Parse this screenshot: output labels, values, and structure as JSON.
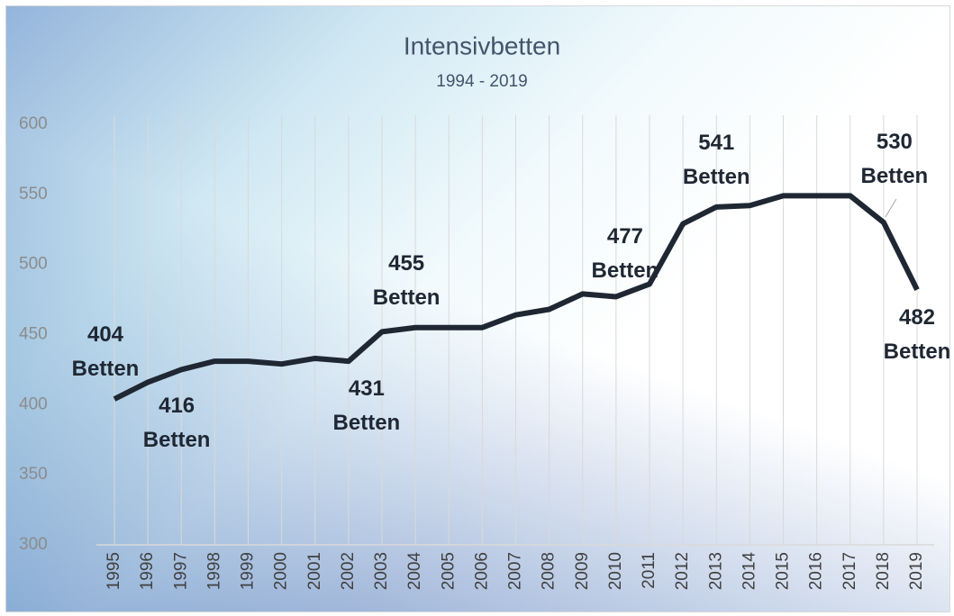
{
  "chart_data": {
    "type": "line",
    "title": "Intensivbetten",
    "subtitle": "1994 - 2019",
    "categories": [
      "1995",
      "1996",
      "1997",
      "1998",
      "1999",
      "2000",
      "2001",
      "2002",
      "2003",
      "2004",
      "2005",
      "2006",
      "2007",
      "2008",
      "2009",
      "2010",
      "2011",
      "2012",
      "2013",
      "2014",
      "2015",
      "2016",
      "2017",
      "2018",
      "2019"
    ],
    "series": [
      {
        "name": "Intensivbetten",
        "color": "#1f2733",
        "values": [
          404,
          416,
          425,
          431,
          431,
          429,
          433,
          431,
          452,
          455,
          455,
          455,
          464,
          468,
          479,
          477,
          486,
          529,
          541,
          542,
          549,
          549,
          549,
          530,
          482
        ],
        "value_labels": [
          "404 Betten",
          "416 Betten",
          null,
          null,
          null,
          null,
          null,
          "431 Betten",
          null,
          "455 Betten",
          null,
          null,
          null,
          null,
          null,
          "477 Betten",
          null,
          null,
          "541 Betten",
          null,
          null,
          null,
          null,
          "530 Betten",
          "482 Betten"
        ]
      }
    ],
    "ylim": [
      300,
      600
    ],
    "yticks": [
      300,
      350,
      400,
      450,
      500,
      550,
      600
    ],
    "grid": true
  }
}
